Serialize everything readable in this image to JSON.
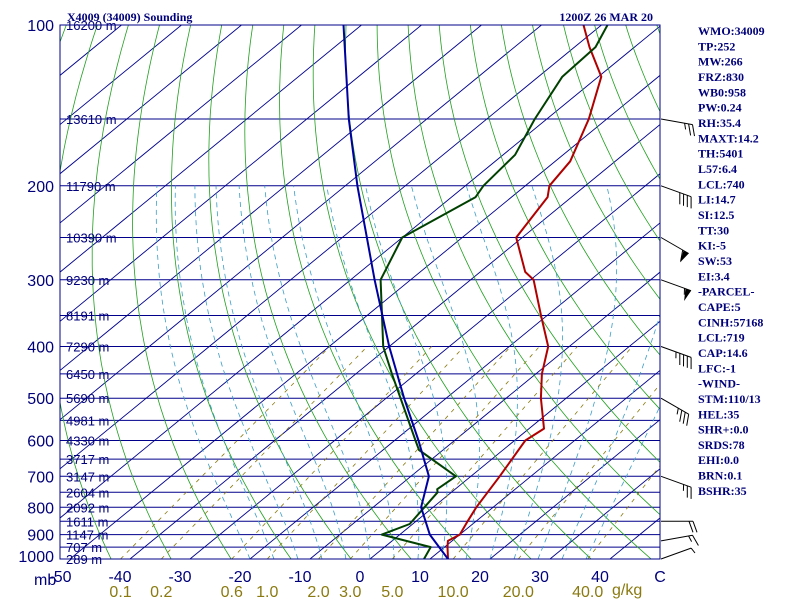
{
  "header": {
    "title": "X4009 (34009) Sounding",
    "timestamp": "1200Z 26 MAR 20"
  },
  "chart_data": {
    "type": "skew-t log-p sounding",
    "title": "X4009 (34009) Sounding",
    "valid_time": "1200Z 26 MAR 20",
    "pressure_axis": {
      "unit_label": "mb",
      "ticks": [
        100,
        200,
        300,
        400,
        500,
        600,
        700,
        800,
        900,
        1000
      ],
      "range": [
        100,
        1000
      ]
    },
    "temperature_axis": {
      "unit": "°C",
      "ticks": [
        -50,
        -40,
        -30,
        -20,
        -10,
        0,
        10,
        20,
        30,
        40
      ],
      "range": [
        -50,
        50
      ],
      "ticks_text": [
        "-50",
        "-40",
        "-30",
        "-20",
        "-10",
        "0",
        "10",
        "20",
        "30",
        "40"
      ],
      "end_label": "C"
    },
    "mixing_ratio_axis": {
      "unit": "g/kg",
      "values": [
        0.1,
        0.2,
        0.6,
        1.0,
        2.0,
        3.0,
        5.0,
        10.0,
        20.0,
        40.0
      ],
      "labels": [
        "0.1",
        "0.2",
        "0.6",
        "1.0",
        "2.0",
        "3.0",
        "5.0",
        "10.0",
        "20.0",
        "40.0"
      ]
    },
    "height_labels": [
      {
        "p": 100,
        "text": "16200 m"
      },
      {
        "p": 150,
        "text": "13610 m"
      },
      {
        "p": 200,
        "text": "11790 m"
      },
      {
        "p": 250,
        "text": "10390 m"
      },
      {
        "p": 300,
        "text": "9230 m"
      },
      {
        "p": 350,
        "text": "8191 m"
      },
      {
        "p": 400,
        "text": "7290 m"
      },
      {
        "p": 450,
        "text": "6450 m"
      },
      {
        "p": 500,
        "text": "5690 m"
      },
      {
        "p": 550,
        "text": "4981 m"
      },
      {
        "p": 600,
        "text": "4330 m"
      },
      {
        "p": 650,
        "text": "3717 m"
      },
      {
        "p": 700,
        "text": "3147 m"
      },
      {
        "p": 750,
        "text": "2604 m"
      },
      {
        "p": 800,
        "text": "2092 m"
      },
      {
        "p": 850,
        "text": "1611 m"
      },
      {
        "p": 900,
        "text": "1147 m"
      },
      {
        "p": 950,
        "text": "707 m"
      },
      {
        "p": 1000,
        "text": "289 m"
      }
    ],
    "series": [
      {
        "name": "temperature",
        "color": "#b00000",
        "points": [
          {
            "p": 1000,
            "t": 13
          },
          {
            "p": 950,
            "t": 10.5
          },
          {
            "p": 925,
            "t": 9.3
          },
          {
            "p": 900,
            "t": 10
          },
          {
            "p": 850,
            "t": 8.6
          },
          {
            "p": 800,
            "t": 7.2
          },
          {
            "p": 700,
            "t": 4.8
          },
          {
            "p": 600,
            "t": 1.8
          },
          {
            "p": 570,
            "t": 2.5
          },
          {
            "p": 500,
            "t": -4.2
          },
          {
            "p": 450,
            "t": -9
          },
          {
            "p": 400,
            "t": -13.5
          },
          {
            "p": 350,
            "t": -21
          },
          {
            "p": 300,
            "t": -29.5
          },
          {
            "p": 290,
            "t": -32.5
          },
          {
            "p": 250,
            "t": -41
          },
          {
            "p": 210,
            "t": -44
          },
          {
            "p": 200,
            "t": -46
          },
          {
            "p": 180,
            "t": -47.5
          },
          {
            "p": 150,
            "t": -53
          },
          {
            "p": 125,
            "t": -59.5
          },
          {
            "p": 110,
            "t": -67.5
          },
          {
            "p": 100,
            "t": -73
          }
        ]
      },
      {
        "name": "dewpoint",
        "color": "#004000",
        "points": [
          {
            "p": 1000,
            "t": 9
          },
          {
            "p": 950,
            "t": 7.7
          },
          {
            "p": 900,
            "t": -3
          },
          {
            "p": 860,
            "t": -0.5
          },
          {
            "p": 750,
            "t": -2.3
          },
          {
            "p": 740,
            "t": -3
          },
          {
            "p": 700,
            "t": -2.5
          },
          {
            "p": 625,
            "t": -14
          },
          {
            "p": 600,
            "t": -16.5
          },
          {
            "p": 450,
            "t": -34
          },
          {
            "p": 400,
            "t": -41
          },
          {
            "p": 300,
            "t": -55
          },
          {
            "p": 250,
            "t": -60
          },
          {
            "p": 210,
            "t": -56
          },
          {
            "p": 200,
            "t": -57
          },
          {
            "p": 175,
            "t": -58
          },
          {
            "p": 150,
            "t": -62
          },
          {
            "p": 125,
            "t": -66
          },
          {
            "p": 110,
            "t": -66.5
          },
          {
            "p": 100,
            "t": -69
          }
        ]
      },
      {
        "name": "parcel",
        "color": "#0000a0",
        "points": [
          {
            "p": 1000,
            "t": 13
          },
          {
            "p": 900,
            "t": 5
          },
          {
            "p": 800,
            "t": -2
          },
          {
            "p": 700,
            "t": -7
          },
          {
            "p": 600,
            "t": -16
          },
          {
            "p": 500,
            "t": -27
          },
          {
            "p": 400,
            "t": -40
          },
          {
            "p": 300,
            "t": -56
          },
          {
            "p": 200,
            "t": -78
          },
          {
            "p": 150,
            "t": -93
          },
          {
            "p": 100,
            "t": -113
          }
        ]
      }
    ],
    "indices": [
      "WMO:34009",
      "TP:252",
      "MW:266",
      "FRZ:830",
      "WB0:958",
      "PW:0.24",
      "RH:35.4",
      "MAXT:14.2",
      "TH:5401",
      "L57:6.4",
      "LCL:740",
      "LI:14.7",
      "SI:12.5",
      "TT:30",
      "KI:-5",
      "SW:53",
      "EI:3.4",
      "-PARCEL-",
      "CAPE:5",
      "CINH:57168",
      "LCL:719",
      "CAP:14.6",
      "LFC:-1",
      "-WIND-",
      "STM:110/13",
      "HEL:35",
      "SHR+:0.0",
      "SRDS:78",
      "EHI:0.0",
      "BRN:0.1",
      "BSHR:35"
    ],
    "wind_barbs": [
      {
        "p": 1000,
        "direction_deg": 250,
        "speed_kt": 5
      },
      {
        "p": 925,
        "direction_deg": 260,
        "speed_kt": 15
      },
      {
        "p": 850,
        "direction_deg": 270,
        "speed_kt": 20
      },
      {
        "p": 700,
        "direction_deg": 290,
        "speed_kt": 25
      },
      {
        "p": 500,
        "direction_deg": 300,
        "speed_kt": 35
      },
      {
        "p": 400,
        "direction_deg": 290,
        "speed_kt": 45
      },
      {
        "p": 300,
        "direction_deg": 290,
        "speed_kt": 55
      },
      {
        "p": 250,
        "direction_deg": 300,
        "speed_kt": 60
      },
      {
        "p": 200,
        "direction_deg": 290,
        "speed_kt": 40
      },
      {
        "p": 150,
        "direction_deg": 280,
        "speed_kt": 25
      }
    ]
  },
  "colors": {
    "isobar": "#00008b",
    "isotherm": "#00008b",
    "dry_adiabat": "#1fa01f",
    "moist_adiabat": "#3a9ec8",
    "mixing_ratio": "#8a7a10",
    "temperature": "#b00000",
    "dewpoint": "#004000",
    "parcel": "#0000a0",
    "text": "#00007a"
  }
}
